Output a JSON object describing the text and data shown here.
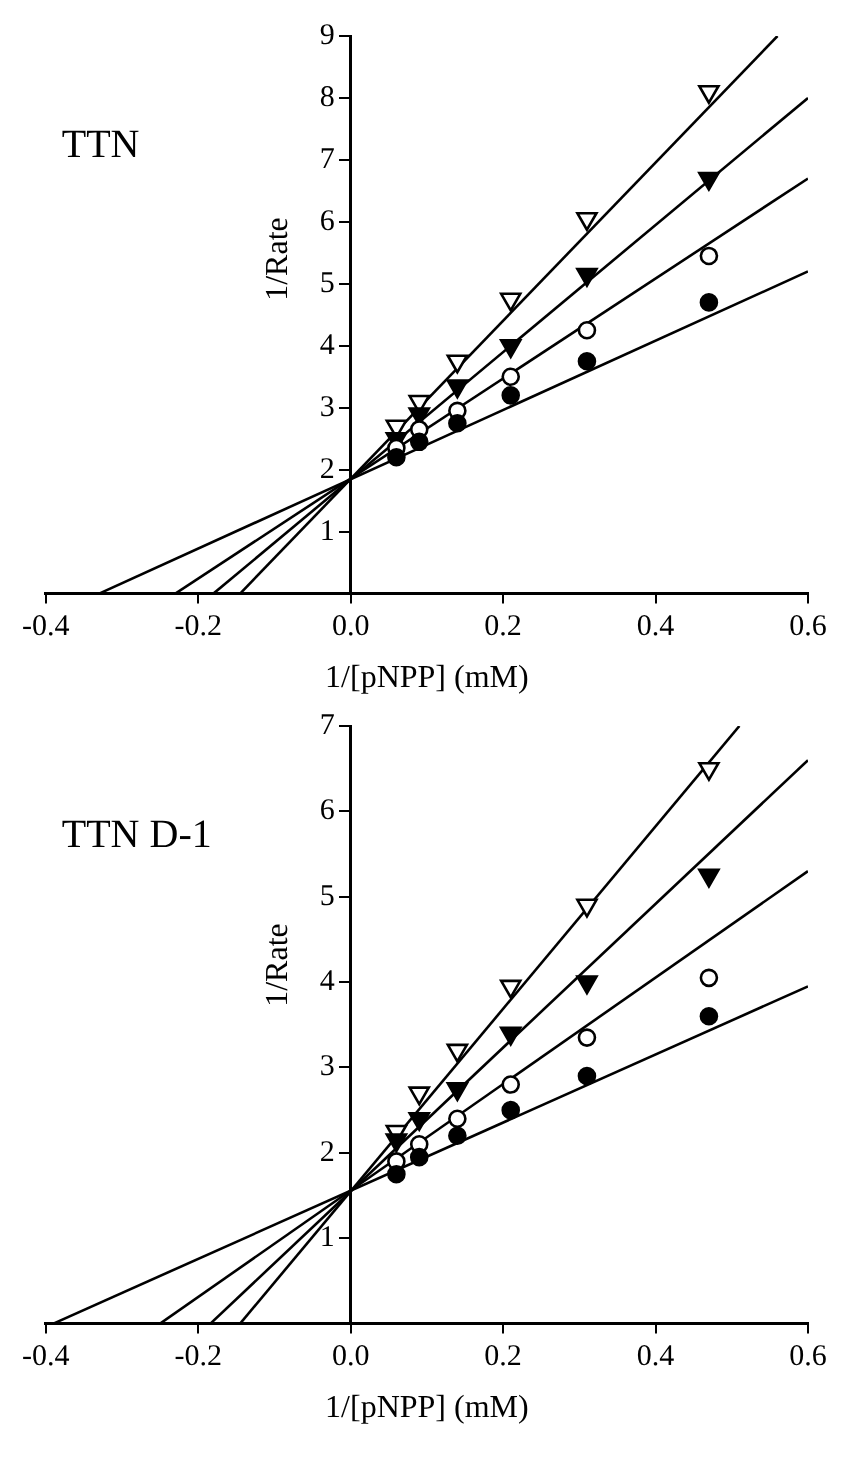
{
  "chart_data": [
    {
      "type": "scatter",
      "title": "TTN",
      "xlabel": "1/[pNPP] (mM)",
      "ylabel": "1/Rate",
      "xlim": [
        -0.4,
        0.6
      ],
      "ylim": [
        0,
        9
      ],
      "xticks": [
        -0.4,
        -0.2,
        {
          "value": 0,
          "label": "0.0"
        },
        0.2,
        0.4,
        0.6
      ],
      "yticks": [
        1,
        2,
        3,
        4,
        5,
        6,
        7,
        8,
        9
      ],
      "grid": false,
      "legend": false,
      "x": [
        0.06,
        0.09,
        0.14,
        0.21,
        0.31,
        0.47
      ],
      "series": [
        {
          "marker": "circle",
          "color": "#000000",
          "values": [
            2.2,
            2.45,
            2.75,
            3.2,
            3.75,
            4.7
          ]
        },
        {
          "marker": "circle",
          "color": "#ffffff",
          "values": [
            2.35,
            2.65,
            2.95,
            3.5,
            4.25,
            5.45
          ]
        },
        {
          "marker": "triangle",
          "color": "#000000",
          "values": [
            2.5,
            2.9,
            3.35,
            4.0,
            5.15,
            6.7
          ]
        },
        {
          "marker": "triangle",
          "color": "#ffffff",
          "values": [
            2.7,
            3.1,
            3.75,
            4.75,
            6.05,
            8.1
          ]
        },
        {
          "type": "line",
          "marker": "none",
          "color": "#000000",
          "x": [
            -0.33,
            0.6
          ],
          "values": [
            0,
            5.2
          ]
        },
        {
          "type": "line",
          "marker": "none",
          "color": "#000000",
          "x": [
            -0.23,
            0.6
          ],
          "values": [
            0,
            6.7
          ]
        },
        {
          "type": "line",
          "marker": "none",
          "color": "#000000",
          "x": [
            -0.18,
            0.6
          ],
          "values": [
            0,
            8.0
          ]
        },
        {
          "type": "line",
          "marker": "none",
          "color": "#000000",
          "x": [
            -0.145,
            0.56
          ],
          "values": [
            0,
            9
          ]
        }
      ]
    },
    {
      "type": "scatter",
      "title": "TTN D-1",
      "xlabel": "1/[pNPP] (mM)",
      "ylabel": "1/Rate",
      "xlim": [
        -0.4,
        0.6
      ],
      "ylim": [
        0,
        7
      ],
      "xticks": [
        -0.4,
        -0.2,
        {
          "value": 0,
          "label": "0.0"
        },
        0.2,
        0.4,
        0.6
      ],
      "yticks": [
        1,
        2,
        3,
        4,
        5,
        6,
        7
      ],
      "grid": false,
      "legend": false,
      "x": [
        0.06,
        0.09,
        0.14,
        0.21,
        0.31,
        0.47
      ],
      "series": [
        {
          "marker": "circle",
          "color": "#000000",
          "values": [
            1.75,
            1.95,
            2.2,
            2.5,
            2.9,
            3.6
          ]
        },
        {
          "marker": "circle",
          "color": "#ffffff",
          "values": [
            1.9,
            2.1,
            2.4,
            2.8,
            3.35,
            4.05
          ]
        },
        {
          "marker": "triangle",
          "color": "#000000",
          "values": [
            2.15,
            2.4,
            2.75,
            3.4,
            4.0,
            5.25
          ]
        },
        {
          "marker": "triangle",
          "color": "#ffffff",
          "values": [
            2.25,
            2.7,
            3.2,
            3.95,
            4.9,
            6.5
          ]
        },
        {
          "type": "line",
          "marker": "none",
          "color": "#000000",
          "x": [
            -0.39,
            0.6
          ],
          "values": [
            0,
            3.95
          ]
        },
        {
          "type": "line",
          "marker": "none",
          "color": "#000000",
          "x": [
            -0.25,
            0.6
          ],
          "values": [
            0,
            5.3
          ]
        },
        {
          "type": "line",
          "marker": "none",
          "color": "#000000",
          "x": [
            -0.184,
            0.6
          ],
          "values": [
            0,
            6.6
          ]
        },
        {
          "type": "line",
          "marker": "none",
          "color": "#000000",
          "x": [
            -0.145,
            0.51
          ],
          "values": [
            0,
            7
          ]
        }
      ]
    }
  ]
}
